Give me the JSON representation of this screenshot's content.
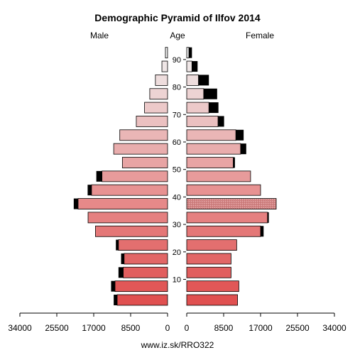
{
  "chart_data": {
    "type": "bar",
    "title": "Demographic Pyramid of Ilfov 2014",
    "left_label": "Male",
    "center_label": "Age",
    "right_label": "Female",
    "source": "www.iz.sk/RRO322",
    "x_ticks_male": [
      "34000",
      "25500",
      "17000",
      "8500",
      "0"
    ],
    "x_ticks_female": [
      "0",
      "8500",
      "17000",
      "25500",
      "34000"
    ],
    "x_tick_values": [
      0,
      8500,
      17000,
      25500,
      34000
    ],
    "xlim": [
      0,
      34000
    ],
    "age_ticks": [
      "10",
      "20",
      "30",
      "40",
      "50",
      "60",
      "70",
      "80",
      "90"
    ],
    "age_groups": [
      "0-4",
      "5-9",
      "10-14",
      "15-19",
      "20-24",
      "25-29",
      "30-34",
      "35-39",
      "40-44",
      "45-49",
      "50-54",
      "55-59",
      "60-64",
      "65-69",
      "70-74",
      "75-79",
      "80-84",
      "85-89",
      "90-94"
    ],
    "male": [
      11600,
      12100,
      10200,
      10000,
      11300,
      16600,
      18300,
      20600,
      17500,
      15100,
      10400,
      12400,
      11000,
      7200,
      5300,
      4100,
      2800,
      1300,
      500
    ],
    "female": [
      11700,
      12000,
      10200,
      10200,
      11500,
      17000,
      18600,
      20600,
      17000,
      14700,
      10700,
      12400,
      11300,
      7200,
      5100,
      3900,
      2700,
      1200,
      500
    ],
    "male_black": [
      800,
      900,
      1100,
      700,
      600,
      0,
      0,
      1000,
      900,
      1300,
      0,
      0,
      0,
      0,
      0,
      0,
      0,
      0,
      0
    ],
    "female_black": [
      0,
      0,
      0,
      0,
      0,
      700,
      300,
      0,
      0,
      0,
      400,
      1300,
      1800,
      1400,
      2200,
      3100,
      2400,
      1300,
      700
    ],
    "colors": {
      "young": "#e05050",
      "old": "#f0f0f0",
      "extra": "#000000",
      "female_texture": "#d68a8a"
    }
  }
}
